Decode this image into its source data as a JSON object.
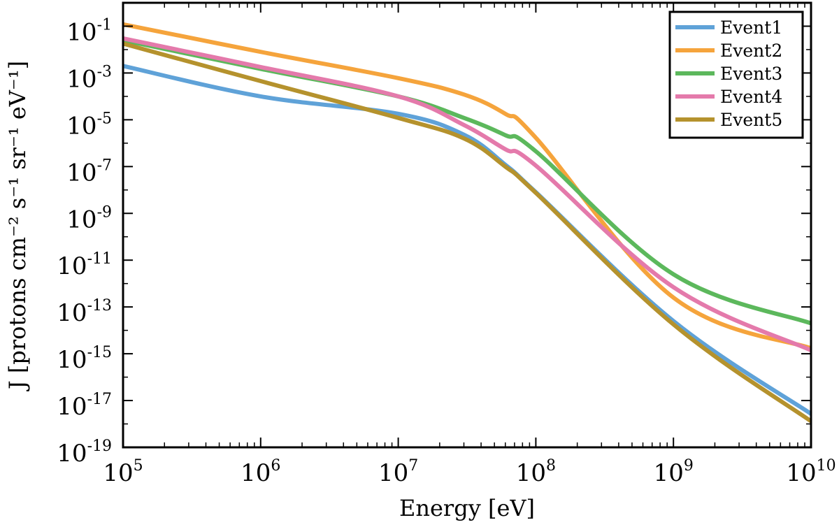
{
  "chart_data": {
    "type": "line",
    "title": "",
    "xlabel": "Energy [eV]",
    "ylabel": "J [protons cm⁻² s⁻¹ sr⁻¹ eV⁻¹]",
    "xscale": "log",
    "yscale": "log",
    "xlim": [
      100000,
      10000000000
    ],
    "ylim": [
      1e-19,
      1
    ],
    "x_ticks": [
      {
        "base": "10",
        "exp": "5"
      },
      {
        "base": "10",
        "exp": "6"
      },
      {
        "base": "10",
        "exp": "7"
      },
      {
        "base": "10",
        "exp": "8"
      },
      {
        "base": "10",
        "exp": "9"
      },
      {
        "base": "10",
        "exp": "10"
      }
    ],
    "y_ticks": [
      {
        "base": "10",
        "exp": "-19"
      },
      {
        "base": "10",
        "exp": "-17"
      },
      {
        "base": "10",
        "exp": "-15"
      },
      {
        "base": "10",
        "exp": "-13"
      },
      {
        "base": "10",
        "exp": "-11"
      },
      {
        "base": "10",
        "exp": "-9"
      },
      {
        "base": "10",
        "exp": "-7"
      },
      {
        "base": "10",
        "exp": "-5"
      },
      {
        "base": "10",
        "exp": "-3"
      },
      {
        "base": "10",
        "exp": "-1"
      }
    ],
    "grid": false,
    "legend_position": "top-right",
    "x": [
      100000,
      1000000,
      10000000,
      30000000,
      60000000,
      100000000,
      1000000000,
      10000000000
    ],
    "series": [
      {
        "name": "Event1",
        "color": "#5fa2d8",
        "values": [
          0.002,
          0.0001,
          1.8e-05,
          2.3e-06,
          1.2e-07,
          8e-09,
          2.5e-14,
          2.7e-18
        ]
      },
      {
        "name": "Event2",
        "color": "#f5a43c",
        "values": [
          0.12,
          0.008,
          0.0006,
          0.00012,
          1.8e-05,
          1.7e-06,
          2.5e-13,
          1.7e-15
        ]
      },
      {
        "name": "Event3",
        "color": "#5cb85c",
        "values": [
          0.025,
          0.0015,
          0.0001,
          1.2e-05,
          2.2e-06,
          4.5e-07,
          2.5e-12,
          2e-14
        ]
      },
      {
        "name": "Event4",
        "color": "#e47aab",
        "values": [
          0.03,
          0.0018,
          0.0001,
          6e-06,
          5.5e-07,
          1.1e-07,
          7e-13,
          1.4e-15
        ]
      },
      {
        "name": "Event5",
        "color": "#b5922d",
        "values": [
          0.018,
          0.00045,
          1.2e-05,
          1.6e-06,
          1e-07,
          7.5e-09,
          1.8e-14,
          1.3e-18
        ]
      }
    ]
  }
}
